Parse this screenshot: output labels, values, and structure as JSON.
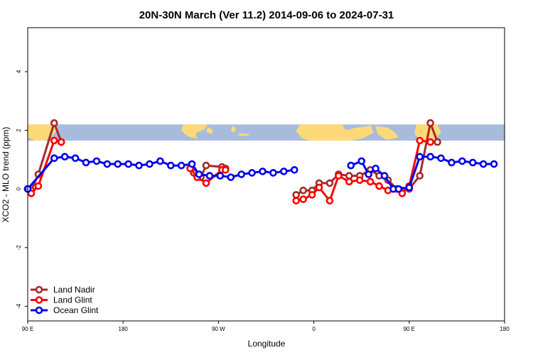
{
  "chart_data": {
    "type": "line",
    "title": "20N-30N March (Ver 11.2)   2014-09-06 to 2024-07-31",
    "xlabel": "Longitude",
    "ylabel": "XCO2 - MLO trend (ppm)",
    "xlim": [
      -90,
      180
    ],
    "ylim": [
      -4.5,
      5.5
    ],
    "x_ticks": [
      {
        "value": -90,
        "label": "90 E"
      },
      {
        "value": -36,
        "label": "180"
      },
      {
        "value": 18,
        "label": "90 W"
      },
      {
        "value": 72,
        "label": "0"
      },
      {
        "value": 126,
        "label": "90 E"
      },
      {
        "value": 180,
        "label": "180"
      }
    ],
    "y_ticks": [
      {
        "value": -4,
        "label": "-4"
      },
      {
        "value": -2,
        "label": "-2"
      },
      {
        "value": 0,
        "label": "0"
      },
      {
        "value": 2,
        "label": "2"
      },
      {
        "value": 4,
        "label": "4"
      }
    ],
    "map_band": {
      "ymin": 1.65,
      "ymax": 2.2,
      "ocean_color": "#a7bcdc",
      "land_color": "#fdd978"
    },
    "legend_position": "bottom-left",
    "series": [
      {
        "name": "Land Nadir",
        "color": "#a52a2a",
        "segments": [
          [
            [
              -90,
              0.0
            ],
            [
              -88,
              -0.05
            ],
            [
              -84,
              0.5
            ],
            [
              -75,
              2.25
            ],
            [
              -71,
              1.6
            ]
          ],
          [
            [
              2,
              0.7
            ],
            [
              4,
              0.55
            ],
            [
              8,
              0.4
            ],
            [
              11,
              0.8
            ],
            [
              20,
              0.75
            ],
            [
              22,
              0.7
            ]
          ],
          [
            [
              62,
              -0.2
            ],
            [
              66,
              -0.05
            ],
            [
              71,
              -0.05
            ],
            [
              75,
              0.2
            ],
            [
              81,
              0.2
            ],
            [
              86,
              0.5
            ],
            [
              92,
              0.45
            ],
            [
              98,
              0.45
            ],
            [
              104,
              0.65
            ],
            [
              109,
              0.45
            ],
            [
              114,
              0.3
            ],
            [
              119,
              0.0
            ],
            [
              122,
              -0.05
            ],
            [
              126,
              0.0
            ],
            [
              132,
              0.45
            ],
            [
              138,
              2.25
            ],
            [
              142,
              1.6
            ]
          ]
        ]
      },
      {
        "name": "Land Glint",
        "color": "#ff0000",
        "segments": [
          [
            [
              -90,
              0.0
            ],
            [
              -88,
              -0.15
            ],
            [
              -84,
              0.1
            ],
            [
              -75,
              1.65
            ],
            [
              -71,
              1.6
            ]
          ],
          [
            [
              2,
              0.7
            ],
            [
              6,
              0.4
            ],
            [
              11,
              0.2
            ],
            [
              20,
              0.65
            ],
            [
              22,
              0.65
            ]
          ],
          [
            [
              62,
              -0.4
            ],
            [
              66,
              -0.35
            ],
            [
              71,
              -0.2
            ],
            [
              75,
              0.05
            ],
            [
              81,
              -0.4
            ],
            [
              86,
              0.45
            ],
            [
              92,
              0.25
            ],
            [
              98,
              0.3
            ],
            [
              104,
              0.25
            ],
            [
              109,
              0.1
            ],
            [
              114,
              -0.05
            ],
            [
              119,
              0.0
            ],
            [
              122,
              -0.15
            ],
            [
              126,
              0.1
            ],
            [
              132,
              1.65
            ],
            [
              138,
              1.6
            ]
          ]
        ]
      },
      {
        "name": "Ocean Glint",
        "color": "#0000ee",
        "segments": [
          [
            [
              -90,
              0.0
            ],
            [
              -75,
              1.05
            ],
            [
              -69,
              1.1
            ],
            [
              -63,
              1.05
            ],
            [
              -57,
              0.9
            ],
            [
              -51,
              0.95
            ],
            [
              -45,
              0.85
            ],
            [
              -39,
              0.85
            ],
            [
              -33,
              0.85
            ],
            [
              -27,
              0.8
            ],
            [
              -21,
              0.85
            ],
            [
              -15,
              0.95
            ],
            [
              -9,
              0.8
            ],
            [
              -3,
              0.8
            ],
            [
              3,
              0.85
            ],
            [
              7,
              0.5
            ],
            [
              13,
              0.45
            ],
            [
              19,
              0.45
            ],
            [
              25,
              0.4
            ],
            [
              31,
              0.5
            ],
            [
              37,
              0.55
            ],
            [
              43,
              0.6
            ],
            [
              49,
              0.55
            ],
            [
              55,
              0.6
            ],
            [
              61,
              0.65
            ]
          ],
          [
            [
              93,
              0.8
            ],
            [
              99,
              0.95
            ],
            [
              103,
              0.5
            ],
            [
              107,
              0.7
            ],
            [
              112,
              0.45
            ],
            [
              117,
              0.0
            ],
            [
              120,
              0.0
            ],
            [
              126,
              0.05
            ],
            [
              132,
              1.1
            ],
            [
              138,
              1.1
            ],
            [
              144,
              1.05
            ],
            [
              150,
              0.9
            ],
            [
              156,
              0.95
            ],
            [
              162,
              0.9
            ],
            [
              168,
              0.85
            ],
            [
              174,
              0.85
            ]
          ]
        ]
      }
    ]
  }
}
